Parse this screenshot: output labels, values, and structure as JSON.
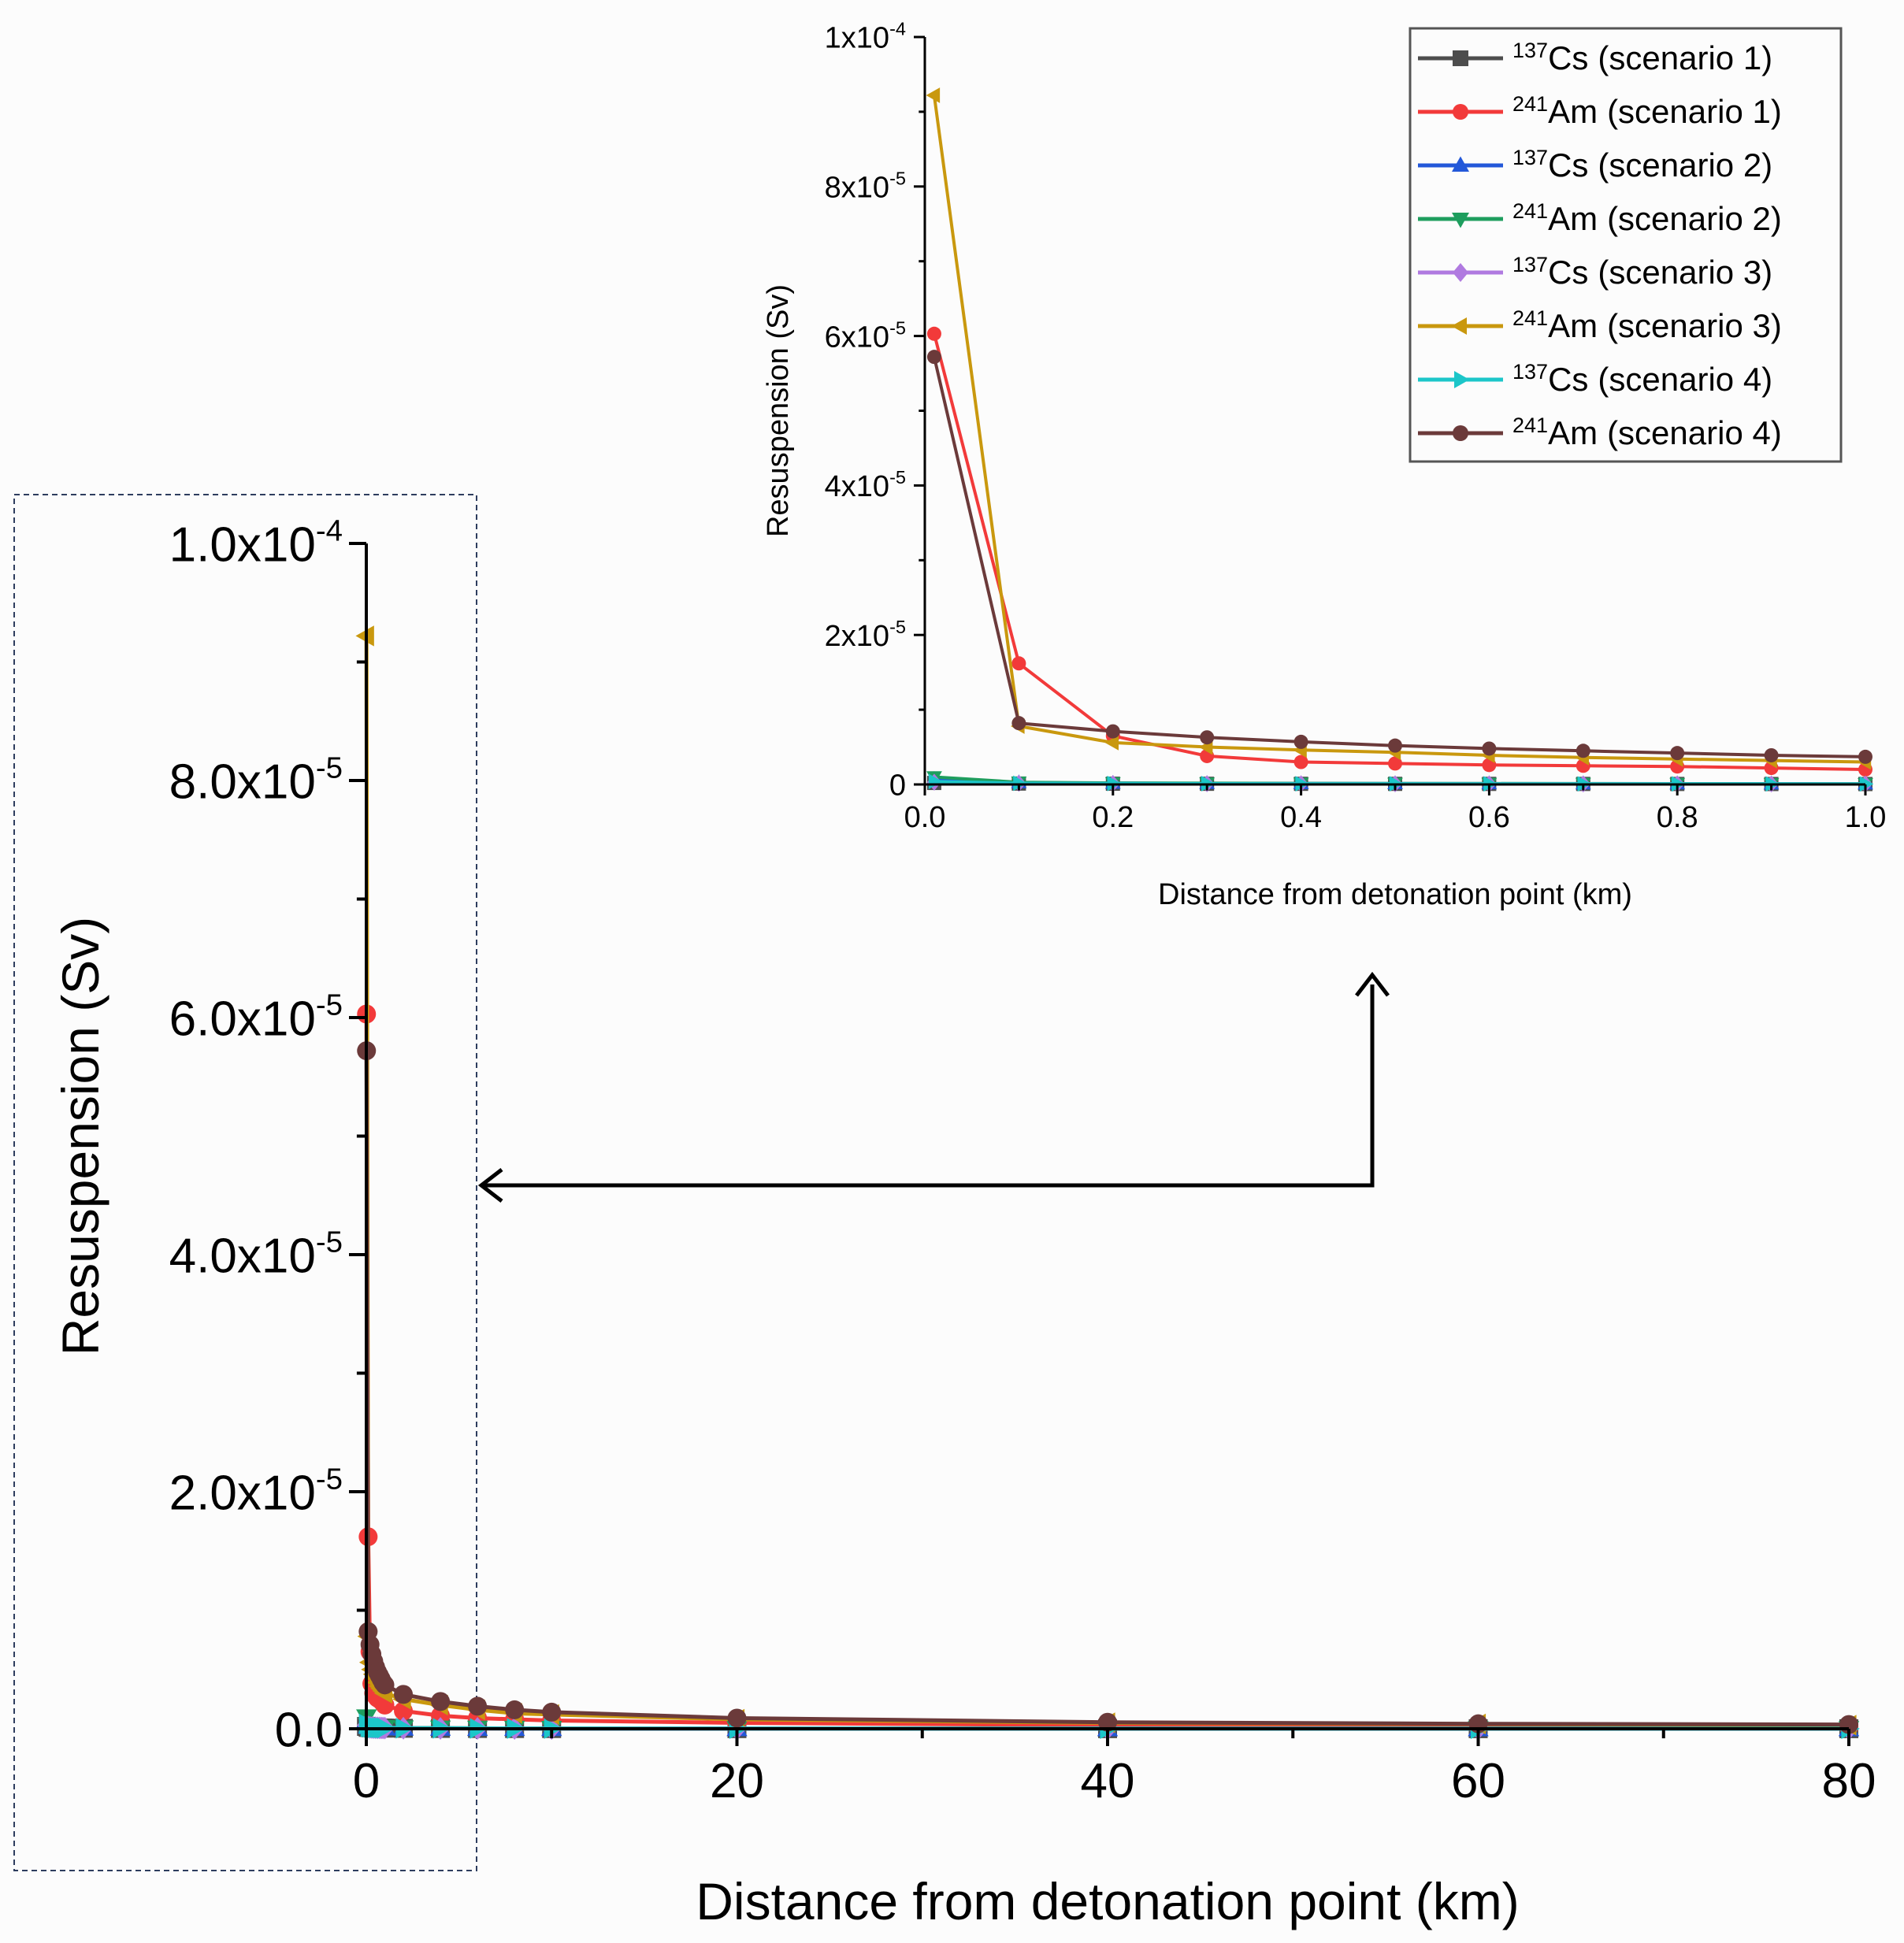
{
  "chart_data": [
    {
      "id": "main",
      "type": "line",
      "title": "",
      "xlabel": "Distance from detonation point (km)",
      "ylabel": "Resuspension (Sv)",
      "xlim": [
        0,
        80
      ],
      "ylim": [
        0,
        0.0001
      ],
      "xticks": [
        0,
        20,
        40,
        60,
        80
      ],
      "xtick_labels": [
        "0",
        "20",
        "40",
        "60",
        "80"
      ],
      "yticks": [
        0,
        2e-05,
        4e-05,
        6e-05,
        8e-05,
        0.0001
      ],
      "ytick_labels": [
        {
          "mant": "0.0",
          "exp": ""
        },
        {
          "mant": "2.0x10",
          "exp": "-5"
        },
        {
          "mant": "4.0x10",
          "exp": "-5"
        },
        {
          "mant": "6.0x10",
          "exp": "-5"
        },
        {
          "mant": "8.0x10",
          "exp": "-5"
        },
        {
          "mant": "1.0x10",
          "exp": "-4"
        }
      ],
      "x": [
        0.01,
        0.1,
        0.2,
        0.3,
        0.4,
        0.5,
        0.6,
        0.7,
        0.8,
        0.9,
        1,
        2,
        4,
        6,
        8,
        10,
        20,
        40,
        60,
        80
      ],
      "series": [
        {
          "name": "137Cs (scenario 1)",
          "iso": "137",
          "el": "Cs",
          "scen": "(scenario 1)",
          "color": "#4d4d4d",
          "marker": "square",
          "values": [
            2e-07,
            1.2e-07,
            1e-07,
            9e-08,
            8.5e-08,
            8e-08,
            7.5e-08,
            7e-08,
            6.5e-08,
            6e-08,
            5.5e-08,
            4e-08,
            3e-08,
            2.5e-08,
            2e-08,
            1.8e-08,
            1.2e-08,
            8e-09,
            6e-09,
            5e-09
          ]
        },
        {
          "name": "241Am (scenario 1)",
          "iso": "241",
          "el": "Am",
          "scen": "(scenario 1)",
          "color": "#f23a3a",
          "marker": "circle",
          "values": [
            6.03e-05,
            1.62e-05,
            6.5e-06,
            3.8e-06,
            3e-06,
            2.8e-06,
            2.6e-06,
            2.5e-06,
            2.4e-06,
            2.2e-06,
            2e-06,
            1.5e-06,
            1.1e-06,
            9e-07,
            8e-07,
            7e-07,
            5e-07,
            3e-07,
            2e-07,
            1.5e-07
          ]
        },
        {
          "name": "137Cs (scenario 2)",
          "iso": "137",
          "el": "Cs",
          "scen": "(scenario 2)",
          "color": "#2358d9",
          "marker": "triangle-up",
          "values": [
            7e-07,
            2.5e-07,
            1.8e-07,
            1.5e-07,
            1.3e-07,
            1.2e-07,
            1.1e-07,
            1e-07,
            9.5e-08,
            9e-08,
            8.5e-08,
            6e-08,
            4.5e-08,
            3.5e-08,
            3e-08,
            2.5e-08,
            1.5e-08,
            1e-08,
            8e-09,
            6e-09
          ]
        },
        {
          "name": "241Am (scenario 2)",
          "iso": "241",
          "el": "Am",
          "scen": "(scenario 2)",
          "color": "#1e9e5e",
          "marker": "triangle-down",
          "values": [
            1e-06,
            3e-07,
            2e-07,
            1.7e-07,
            1.5e-07,
            1.4e-07,
            1.3e-07,
            1.2e-07,
            1.1e-07,
            1e-07,
            9.5e-08,
            7e-08,
            5e-08,
            4e-08,
            3.5e-08,
            3e-08,
            2e-08,
            1.2e-08,
            9e-09,
            7e-09
          ]
        },
        {
          "name": "137Cs (scenario 3)",
          "iso": "137",
          "el": "Cs",
          "scen": "(scenario 3)",
          "color": "#b07ae0",
          "marker": "diamond",
          "values": [
            3e-07,
            1.5e-07,
            1.2e-07,
            1e-07,
            9e-08,
            8.5e-08,
            8e-08,
            7.5e-08,
            7e-08,
            6.5e-08,
            6e-08,
            4.5e-08,
            3.5e-08,
            2.8e-08,
            2.3e-08,
            2e-08,
            1.3e-08,
            9e-09,
            7e-09,
            5.5e-09
          ]
        },
        {
          "name": "241Am (scenario 3)",
          "iso": "241",
          "el": "Am",
          "scen": "(scenario 3)",
          "color": "#c9980e",
          "marker": "triangle-left",
          "values": [
            9.22e-05,
            7.8e-06,
            5.6e-06,
            5e-06,
            4.6e-06,
            4.3e-06,
            3.9e-06,
            3.6e-06,
            3.4e-06,
            3.2e-06,
            3e-06,
            2.5e-06,
            2e-06,
            1.6e-06,
            1.3e-06,
            1.2e-06,
            8e-07,
            5e-07,
            4e-07,
            3e-07
          ]
        },
        {
          "name": "137Cs (scenario 4)",
          "iso": "137",
          "el": "Cs",
          "scen": "(scenario 4)",
          "color": "#1cc6c9",
          "marker": "triangle-right",
          "values": [
            4e-07,
            1.6e-07,
            1.3e-07,
            1.1e-07,
            1e-07,
            9e-08,
            8.5e-08,
            8e-08,
            7.5e-08,
            7e-08,
            6.5e-08,
            5e-08,
            3.8e-08,
            3e-08,
            2.5e-08,
            2.2e-08,
            1.4e-08,
            9.5e-09,
            7.5e-09,
            6e-09
          ]
        },
        {
          "name": "241Am (scenario 4)",
          "iso": "241",
          "el": "Am",
          "scen": "(scenario 4)",
          "color": "#6b3a3a",
          "marker": "circle",
          "values": [
            5.72e-05,
            8.2e-06,
            7.1e-06,
            6.3e-06,
            5.7e-06,
            5.2e-06,
            4.8e-06,
            4.5e-06,
            4.2e-06,
            3.9e-06,
            3.7e-06,
            2.9e-06,
            2.3e-06,
            1.9e-06,
            1.6e-06,
            1.4e-06,
            9e-07,
            5.5e-07,
            4.2e-07,
            3.6e-07
          ]
        }
      ]
    },
    {
      "id": "inset",
      "type": "line",
      "title": "",
      "xlabel": "Distance from detonation point (km)",
      "ylabel": "Resuspension (Sv)",
      "xlim": [
        0,
        1
      ],
      "ylim": [
        0,
        0.0001
      ],
      "xticks": [
        0,
        0.2,
        0.4,
        0.6,
        0.8,
        1.0
      ],
      "xtick_labels": [
        "0.0",
        "0.2",
        "0.4",
        "0.6",
        "0.8",
        "1.0"
      ],
      "yticks": [
        0,
        2e-05,
        4e-05,
        6e-05,
        8e-05,
        0.0001
      ],
      "ytick_labels": [
        {
          "mant": "0",
          "exp": ""
        },
        {
          "mant": "2x10",
          "exp": "-5"
        },
        {
          "mant": "4x10",
          "exp": "-5"
        },
        {
          "mant": "6x10",
          "exp": "-5"
        },
        {
          "mant": "8x10",
          "exp": "-5"
        },
        {
          "mant": "1x10",
          "exp": "-4"
        }
      ],
      "x_count": 11,
      "legend_position": "top-right"
    }
  ]
}
